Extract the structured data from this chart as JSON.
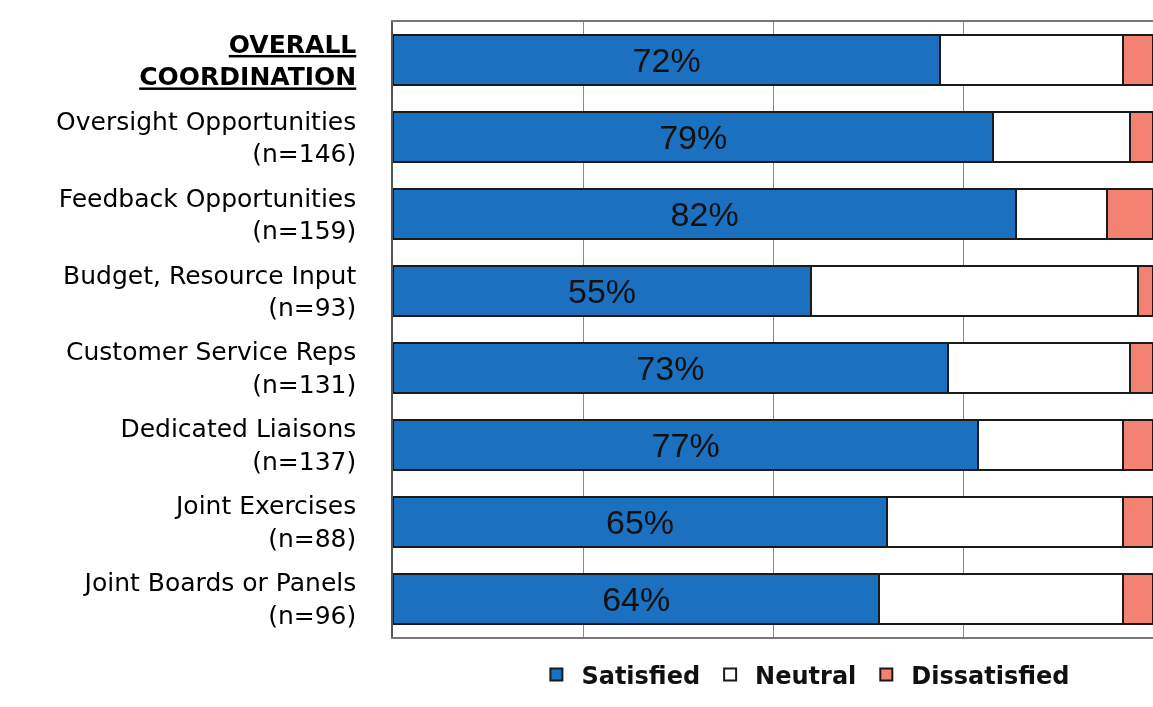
{
  "chart_data": {
    "type": "bar",
    "orientation": "horizontal",
    "stacked": true,
    "categories": [
      "OVERALL\nCOORDINATION",
      "Oversight Opportunities\n(n=146)",
      "Feedback Opportunities\n(n=159)",
      "Budget, Resource Input\n(n=93)",
      "Customer Service Reps\n(n=131)",
      "Dedicated Liaisons\n(n=137)",
      "Joint Exercises\n(n=88)",
      "Joint Boards or Panels\n(n=96)"
    ],
    "series": [
      {
        "name": "Satisfied",
        "color": "#1b70c0",
        "values": [
          72,
          79,
          82,
          55,
          73,
          77,
          65,
          64
        ],
        "value_labels": [
          "72%",
          "79%",
          "82%",
          "55%",
          "73%",
          "77%",
          "65%",
          "64%"
        ]
      },
      {
        "name": "Neutral",
        "color": "#ffffff",
        "values": [
          24,
          18,
          12,
          43,
          24,
          19,
          31,
          32
        ]
      },
      {
        "name": "Dissatisfied",
        "color": "#f48272",
        "values": [
          4,
          3,
          6,
          2,
          3,
          4,
          4,
          4
        ]
      }
    ],
    "xlim": [
      0,
      100
    ],
    "xticks": [
      {
        "value": 25,
        "label": null
      },
      {
        "value": 50,
        "label": null
      },
      {
        "value": 75,
        "label": null
      }
    ],
    "grid": "x",
    "legend": "bottom",
    "tick_labels": "y"
  }
}
